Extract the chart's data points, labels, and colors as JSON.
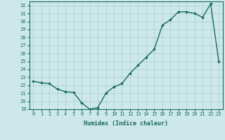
{
  "x": [
    0,
    1,
    2,
    3,
    4,
    5,
    6,
    7,
    8,
    9,
    10,
    11,
    12,
    13,
    14,
    15,
    16,
    17,
    18,
    19,
    20,
    21,
    22,
    23
  ],
  "y": [
    22.5,
    22.3,
    22.2,
    21.5,
    21.2,
    21.1,
    19.8,
    19.0,
    19.2,
    21.0,
    21.8,
    22.2,
    23.5,
    24.5,
    25.5,
    26.5,
    29.5,
    30.2,
    31.2,
    31.2,
    31.0,
    30.5,
    32.2,
    25.0
  ],
  "xlabel": "Humidex (Indice chaleur)",
  "ylim": [
    19,
    32.5
  ],
  "xlim": [
    -0.5,
    23.5
  ],
  "yticks": [
    19,
    20,
    21,
    22,
    23,
    24,
    25,
    26,
    27,
    28,
    29,
    30,
    31,
    32
  ],
  "xticks": [
    0,
    1,
    2,
    3,
    4,
    5,
    6,
    7,
    8,
    9,
    10,
    11,
    12,
    13,
    14,
    15,
    16,
    17,
    18,
    19,
    20,
    21,
    22,
    23
  ],
  "line_color": "#1a6b5a",
  "marker": "D",
  "marker_size": 1.8,
  "bg_color": "#cce8e8",
  "grid_color": "#aacccc",
  "line_width": 1.0,
  "tick_fontsize": 5.0,
  "xlabel_fontsize": 6.0
}
